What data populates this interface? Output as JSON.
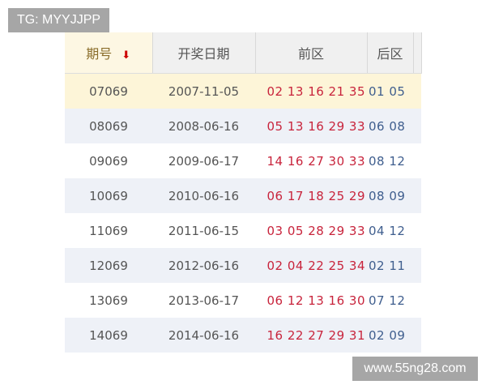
{
  "watermark_top": "TG: MYYJJPP",
  "watermark_bottom": "www.55ng28.com",
  "header": {
    "issue": "期号",
    "sort_icon": "arrow-down-icon",
    "sort_glyph": "🠗",
    "date": "开奖日期",
    "front": "前区",
    "back": "后区"
  },
  "colors": {
    "front": "#c8243c",
    "back": "#3f5e8e",
    "highlight": "#fdf5d8"
  },
  "rows": [
    {
      "issue": "07069",
      "date": "2007-11-05",
      "front": "02 13 16 21 35",
      "back": "01 05"
    },
    {
      "issue": "08069",
      "date": "2008-06-16",
      "front": "05 13 16 29 33",
      "back": "06 08"
    },
    {
      "issue": "09069",
      "date": "2009-06-17",
      "front": "14 16 27 30 33",
      "back": "08 12"
    },
    {
      "issue": "10069",
      "date": "2010-06-16",
      "front": "06 17 18 25 29",
      "back": "08 09"
    },
    {
      "issue": "11069",
      "date": "2011-06-15",
      "front": "03 05 28 29 33",
      "back": "04 12"
    },
    {
      "issue": "12069",
      "date": "2012-06-16",
      "front": "02 04 22 25 34",
      "back": "02 11"
    },
    {
      "issue": "13069",
      "date": "2013-06-17",
      "front": "06 12 13 16 30",
      "back": "07 12"
    },
    {
      "issue": "14069",
      "date": "2014-06-16",
      "front": "16 22 27 29 31",
      "back": "02 09"
    }
  ]
}
